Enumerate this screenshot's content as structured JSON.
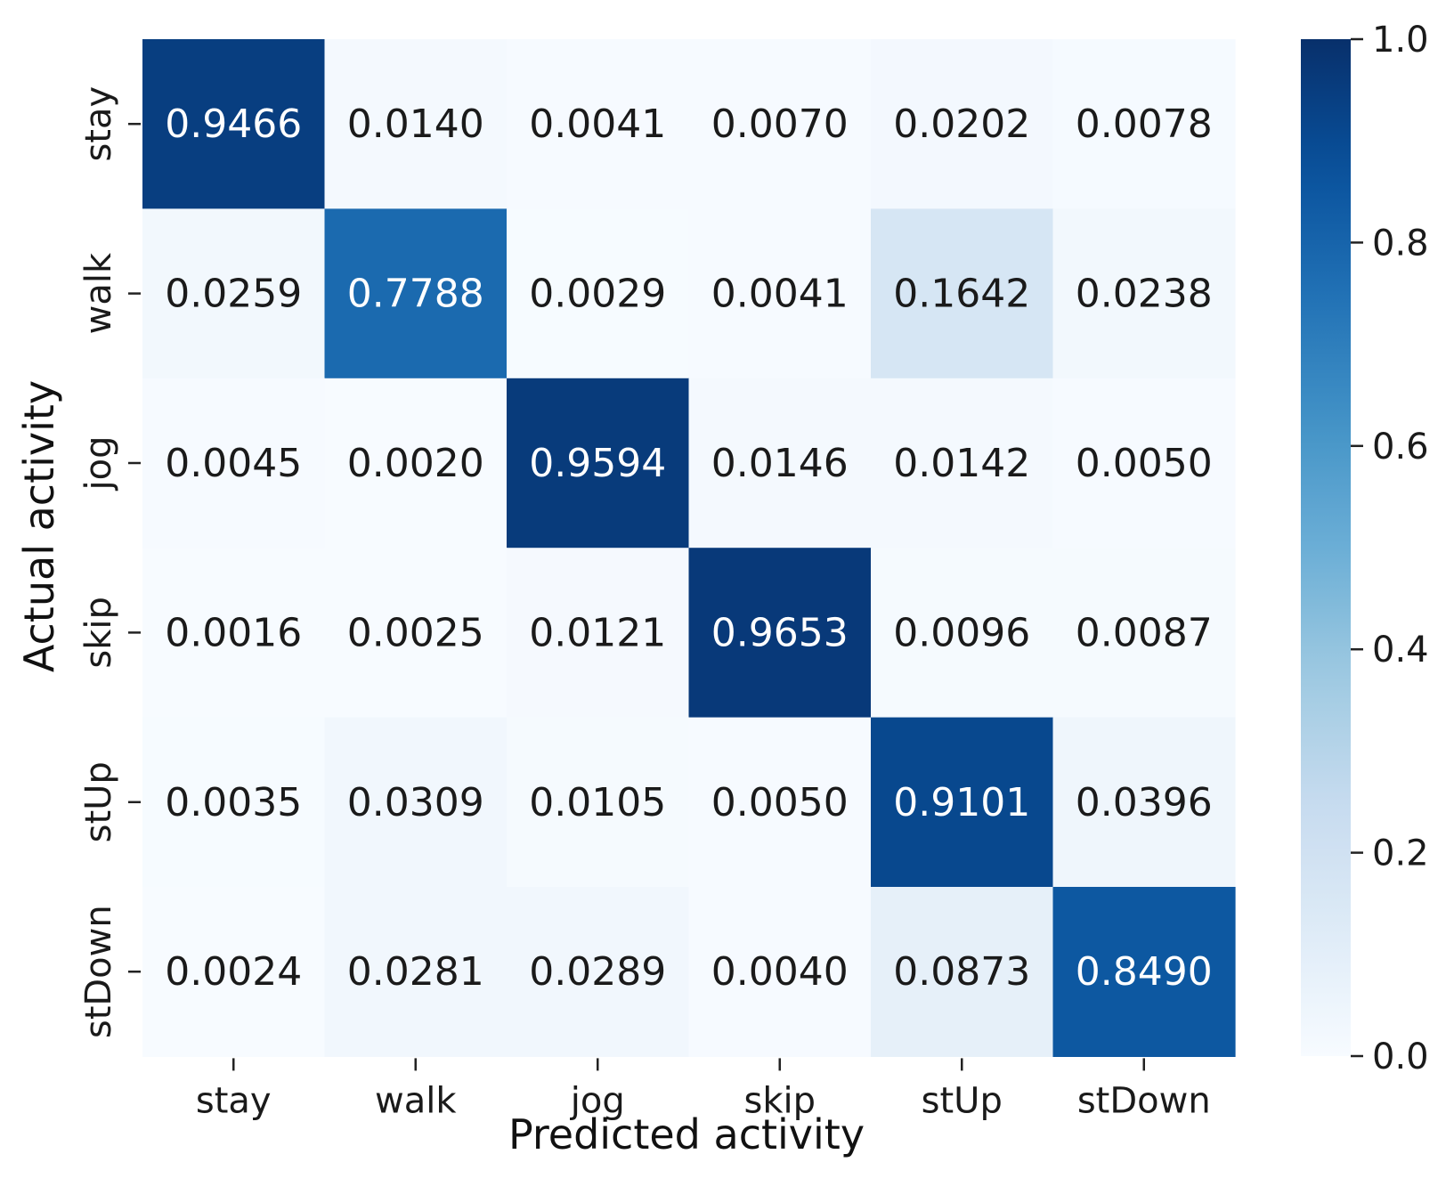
{
  "chart_data": {
    "type": "heatmap",
    "x_categories": [
      "stay",
      "walk",
      "jog",
      "skip",
      "stUp",
      "stDown"
    ],
    "y_categories": [
      "stay",
      "walk",
      "jog",
      "skip",
      "stUp",
      "stDown"
    ],
    "values": [
      [
        0.9466,
        0.014,
        0.0041,
        0.007,
        0.0202,
        0.0078
      ],
      [
        0.0259,
        0.7788,
        0.0029,
        0.0041,
        0.1642,
        0.0238
      ],
      [
        0.0045,
        0.002,
        0.9594,
        0.0146,
        0.0142,
        0.005
      ],
      [
        0.0016,
        0.0025,
        0.0121,
        0.9653,
        0.0096,
        0.0087
      ],
      [
        0.0035,
        0.0309,
        0.0105,
        0.005,
        0.9101,
        0.0396
      ],
      [
        0.0024,
        0.0281,
        0.0289,
        0.004,
        0.0873,
        0.849
      ]
    ],
    "value_labels": [
      [
        "0.9466",
        "0.0140",
        "0.0041",
        "0.0070",
        "0.0202",
        "0.0078"
      ],
      [
        "0.0259",
        "0.7788",
        "0.0029",
        "0.0041",
        "0.1642",
        "0.0238"
      ],
      [
        "0.0045",
        "0.0020",
        "0.9594",
        "0.0146",
        "0.0142",
        "0.0050"
      ],
      [
        "0.0016",
        "0.0025",
        "0.0121",
        "0.9653",
        "0.0096",
        "0.0087"
      ],
      [
        "0.0035",
        "0.0309",
        "0.0105",
        "0.0050",
        "0.9101",
        "0.0396"
      ],
      [
        "0.0024",
        "0.0281",
        "0.0289",
        "0.0040",
        "0.0873",
        "0.8490"
      ]
    ],
    "xlabel": "Predicted activity",
    "ylabel": "Actual activity",
    "colorbar": {
      "range": [
        0.0,
        1.0
      ],
      "ticks": [
        0.0,
        0.2,
        0.4,
        0.6,
        0.8,
        1.0
      ],
      "tick_labels": [
        "0.0",
        "0.2",
        "0.4",
        "0.6",
        "0.8",
        "1.0"
      ],
      "colormap": "Blues",
      "position": "right"
    },
    "colors": {
      "low": "#f7fbff",
      "high": "#08306b",
      "text_dark": "#1a1a1a",
      "text_light": "#ffffff"
    }
  }
}
